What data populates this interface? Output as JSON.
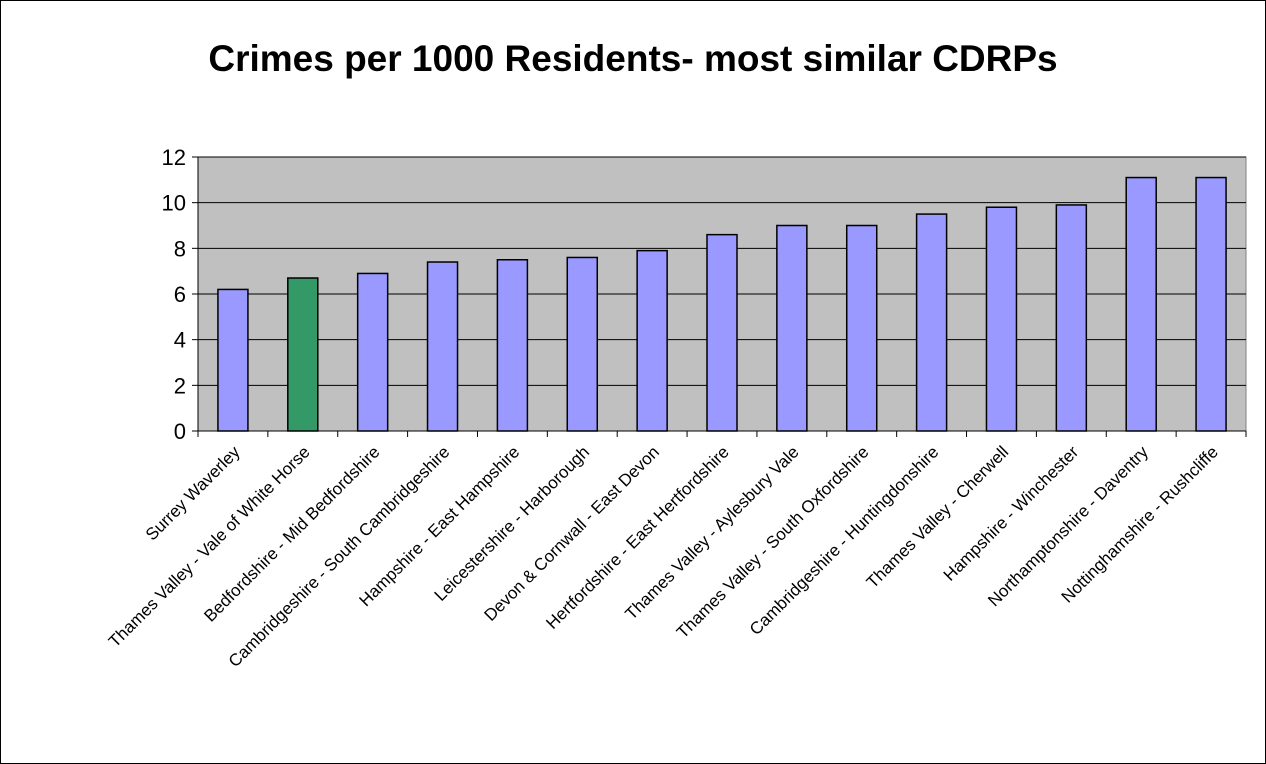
{
  "chart_data": {
    "type": "bar",
    "title": "Crimes per 1000 Residents- most similar CDRPs",
    "xlabel": "",
    "ylabel": "",
    "ylim": [
      0,
      12
    ],
    "yticks": [
      0,
      2,
      4,
      6,
      8,
      10,
      12
    ],
    "grid": true,
    "legend": "none",
    "categories": [
      "Surrey Waverley",
      "Thames Valley - Vale of White Horse",
      "Bedfordshire - Mid Bedfordshire",
      "Cambridgeshire - South Cambridgeshire",
      "Hampshire - East Hampshire",
      "Leicestershire - Harborough",
      "Devon & Cornwall - East Devon",
      "Hertfordshire - East Hertfordshire",
      "Thames Valley - Aylesbury Vale",
      "Thames Valley - South Oxfordshire",
      "Cambridgeshire - Huntingdonshire",
      "Thames Valley - Cherwell",
      "Hampshire - Winchester",
      "Northamptonshire - Daventry",
      "Nottinghamshire - Rushcliffe"
    ],
    "values": [
      6.2,
      6.7,
      6.9,
      7.4,
      7.5,
      7.6,
      7.9,
      8.6,
      9.0,
      9.0,
      9.5,
      9.8,
      9.9,
      11.1,
      11.1
    ],
    "highlight_index": 1,
    "colors": {
      "bar": "#9999FF",
      "highlight": "#339966",
      "plot_background": "#C0C0C0",
      "gridline": "#000000",
      "bar_outline": "#000000"
    }
  }
}
